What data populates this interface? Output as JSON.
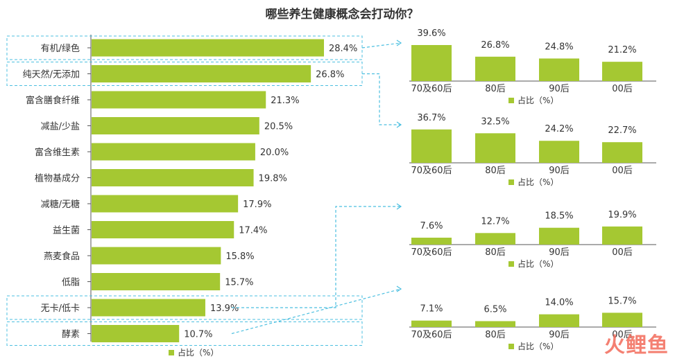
{
  "title": "哪些养生健康概念会打动你？",
  "colors": {
    "bar": "#a5c832",
    "highlight": "#4bbfe0",
    "axis": "#555555"
  },
  "watermark": "火鲤鱼",
  "chart_data": [
    {
      "type": "bar",
      "orientation": "horizontal",
      "categories": [
        "有机/绿色",
        "纯天然/无添加",
        "富含膳食纤维",
        "减盐/少盐",
        "富含维生素",
        "植物基成分",
        "减糖/无糖",
        "益生菌",
        "燕麦食品",
        "低脂",
        "无卡/低卡",
        "酵素"
      ],
      "values": [
        28.4,
        26.8,
        21.3,
        20.5,
        20.0,
        19.8,
        17.9,
        17.4,
        15.8,
        15.7,
        13.9,
        10.7
      ],
      "value_labels": [
        "28.4%",
        "26.8%",
        "21.3%",
        "20.5%",
        "20.0%",
        "19.8%",
        "17.9%",
        "17.4%",
        "15.8%",
        "15.7%",
        "13.9%",
        "10.7%"
      ],
      "highlighted": [
        "有机/绿色",
        "纯天然/无添加",
        "无卡/低卡",
        "酵素"
      ],
      "legend": "占比（%）"
    },
    {
      "type": "bar",
      "source": "有机/绿色",
      "categories": [
        "70及60后",
        "80后",
        "90后",
        "00后"
      ],
      "values": [
        39.6,
        26.8,
        24.8,
        21.2
      ],
      "value_labels": [
        "39.6%",
        "26.8%",
        "24.8%",
        "21.2%"
      ],
      "legend": "占比（%）"
    },
    {
      "type": "bar",
      "source": "纯天然/无添加",
      "categories": [
        "70及60后",
        "80后",
        "90后",
        "00后"
      ],
      "values": [
        36.7,
        32.5,
        24.2,
        22.7
      ],
      "value_labels": [
        "36.7%",
        "32.5%",
        "24.2%",
        "22.7%"
      ],
      "legend": "占比（%）"
    },
    {
      "type": "bar",
      "source": "无卡/低卡",
      "categories": [
        "70及60后",
        "80后",
        "90后",
        "00后"
      ],
      "values": [
        7.6,
        12.7,
        18.5,
        19.9
      ],
      "value_labels": [
        "7.6%",
        "12.7%",
        "18.5%",
        "19.9%"
      ],
      "legend": "占比（%）"
    },
    {
      "type": "bar",
      "source": "酵素",
      "categories": [
        "70及60后",
        "80后",
        "90后",
        "00后"
      ],
      "values": [
        7.1,
        6.5,
        14.0,
        15.7
      ],
      "value_labels": [
        "7.1%",
        "6.5%",
        "14.0%",
        "15.7%"
      ],
      "legend": "占比（%）"
    }
  ]
}
